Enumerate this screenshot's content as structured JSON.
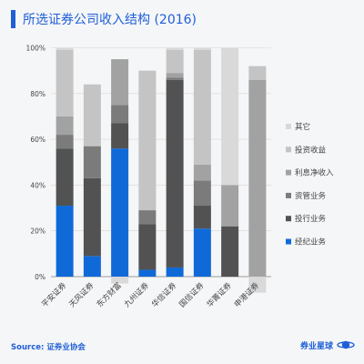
{
  "page": {
    "title": "所选证券公司收入结构 (2016)"
  },
  "footer": {
    "source": "Source: 证券业协会",
    "brand": "券业星球"
  },
  "colors": {
    "其它": "#d9d9d9",
    "投资收益": "#c4c4c4",
    "利息净收入": "#a2a2a2",
    "资管业务": "#7b7b7b",
    "投行业务": "#525252",
    "经纪业务": "#0f6ad8",
    "accent": "#1f5fd6"
  },
  "chart_data": {
    "type": "bar",
    "stacked": true,
    "categories": [
      "平安证券",
      "天风证券",
      "东方财富",
      "九州证券",
      "华信证券",
      "国信证券",
      "华菁证券",
      "申港证券"
    ],
    "series": [
      {
        "name": "经纪业务",
        "values": [
          31,
          9,
          56,
          3,
          4,
          21,
          0,
          0
        ]
      },
      {
        "name": "投行业务",
        "values": [
          25,
          34,
          11,
          20,
          82,
          10,
          22,
          0
        ]
      },
      {
        "name": "资管业务",
        "values": [
          6,
          14,
          8,
          6,
          1,
          11,
          0,
          0
        ]
      },
      {
        "name": "利息净收入",
        "values": [
          8,
          0,
          20,
          0,
          2,
          7,
          18,
          86
        ]
      },
      {
        "name": "投资收益",
        "values": [
          29,
          27,
          0,
          61,
          10,
          50,
          0,
          6
        ]
      },
      {
        "name": "其它",
        "values": [
          1,
          0,
          -3,
          0,
          1,
          1,
          60,
          -7
        ]
      }
    ],
    "ylim": [
      -10,
      100
    ],
    "yticks": [
      "0%",
      "20%",
      "40%",
      "60%",
      "80%",
      "100%"
    ],
    "legend": [
      "其它",
      "投资收益",
      "利息净收入",
      "资管业务",
      "投行业务",
      "经纪业务"
    ],
    "legend_position": "right",
    "grid": true
  }
}
